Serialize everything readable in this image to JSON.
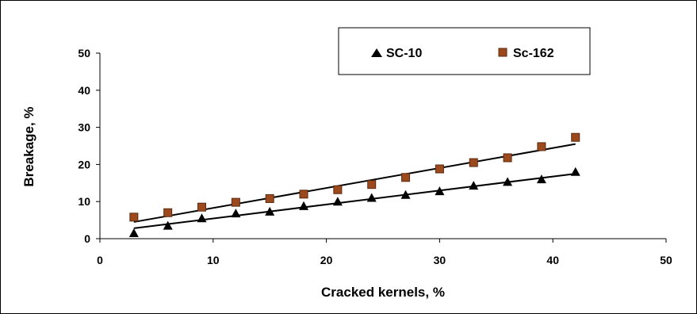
{
  "chart_data": {
    "type": "scatter",
    "xlabel": "Cracked kernels, %",
    "ylabel": "Breakage, %",
    "xlim": [
      0,
      50
    ],
    "ylim": [
      0,
      50
    ],
    "xticks": [
      0,
      10,
      20,
      30,
      40,
      50
    ],
    "yticks": [
      0,
      10,
      20,
      30,
      40,
      50
    ],
    "grid": false,
    "legend_position": "top-right",
    "series": [
      {
        "name": "SC-10",
        "marker": "triangle",
        "color": "#000000",
        "x": [
          3,
          6,
          9,
          12,
          15,
          18,
          21,
          24,
          27,
          30,
          33,
          36,
          39,
          42
        ],
        "y": [
          1.5,
          3.5,
          5.5,
          6.8,
          7.3,
          8.8,
          10.0,
          11.0,
          11.8,
          12.8,
          14.3,
          15.3,
          16.0,
          18.0
        ],
        "trendline": {
          "x": [
            3,
            42
          ],
          "y": [
            2.8,
            17.5
          ]
        }
      },
      {
        "name": "Sc-162",
        "marker": "square",
        "color": "#9c4a1d",
        "x": [
          3,
          6,
          9,
          12,
          15,
          18,
          21,
          24,
          27,
          30,
          33,
          36,
          39,
          42
        ],
        "y": [
          5.8,
          7.0,
          8.5,
          9.8,
          10.8,
          12.0,
          13.2,
          14.6,
          16.5,
          18.8,
          20.5,
          21.8,
          24.8,
          27.3
        ],
        "trendline": {
          "x": [
            3,
            42
          ],
          "y": [
            4.5,
            25.5
          ]
        }
      }
    ]
  }
}
